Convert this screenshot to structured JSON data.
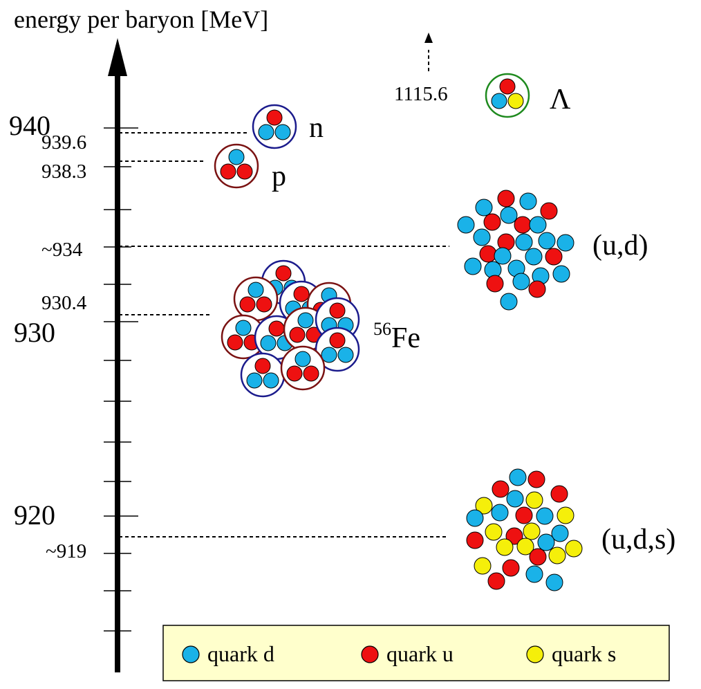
{
  "axis": {
    "title": "energy per baryon [MeV]",
    "major_labels": [
      "940",
      "930",
      "920"
    ],
    "minor_labels": [
      "939.6",
      "938.3",
      "~934",
      "930.4",
      "~919"
    ],
    "arrow_label": "1115.6"
  },
  "particles": {
    "neutron": "n",
    "proton": "p",
    "lambda": "Λ",
    "iron_mass": "56",
    "iron_symbol": "Fe",
    "ud_matter": "(u,d)",
    "uds_matter": "(u,d,s)"
  },
  "legend": {
    "items": [
      {
        "label": "quark d",
        "color": "#1ab2e8"
      },
      {
        "label": "quark u",
        "color": "#ee1111"
      },
      {
        "label": "quark s",
        "color": "#f5ef0a"
      }
    ]
  },
  "colors": {
    "quark_d": "#1ab2e8",
    "quark_u": "#ee1111",
    "quark_s": "#f5ef0a",
    "neutron_ring": "#1b1b8c",
    "proton_ring": "#7a1212",
    "lambda_ring": "#1e8a1e",
    "legend_bg": "#ffffcc"
  }
}
